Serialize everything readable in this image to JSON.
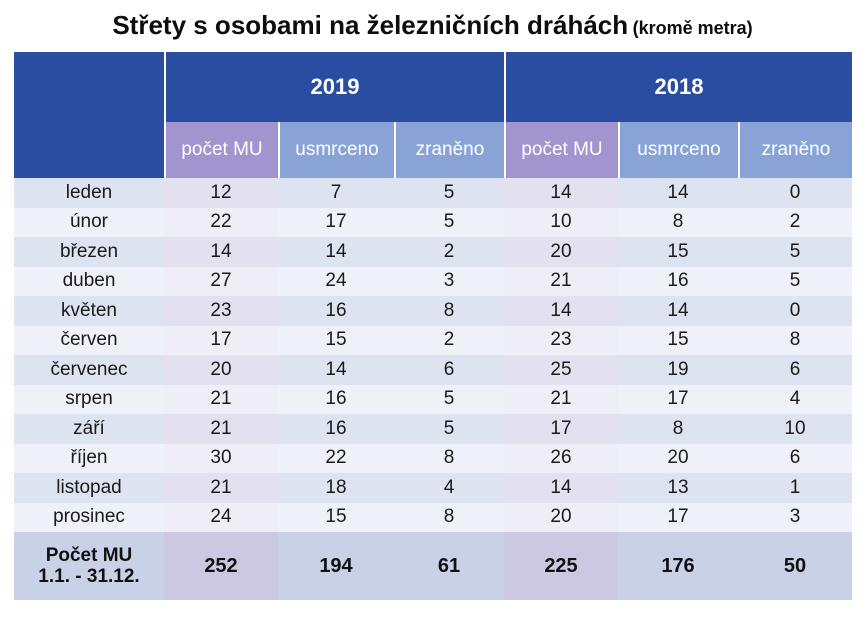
{
  "title": "Střety s osobami na železničních dráhách",
  "subtitle": "(kromě metra)",
  "chart_data": {
    "type": "table",
    "years": [
      "2019",
      "2018"
    ],
    "columns": [
      "počet MU",
      "usmrceno",
      "zraněno"
    ],
    "rows": [
      {
        "month": "leden",
        "values": [
          12,
          7,
          5,
          14,
          14,
          0
        ]
      },
      {
        "month": "únor",
        "values": [
          22,
          17,
          5,
          10,
          8,
          2
        ]
      },
      {
        "month": "březen",
        "values": [
          14,
          14,
          2,
          20,
          15,
          5
        ]
      },
      {
        "month": "duben",
        "values": [
          27,
          24,
          3,
          21,
          16,
          5
        ]
      },
      {
        "month": "květen",
        "values": [
          23,
          16,
          8,
          14,
          14,
          0
        ]
      },
      {
        "month": "červen",
        "values": [
          17,
          15,
          2,
          23,
          15,
          8
        ]
      },
      {
        "month": "červenec",
        "values": [
          20,
          14,
          6,
          25,
          19,
          6
        ]
      },
      {
        "month": "srpen",
        "values": [
          21,
          16,
          5,
          21,
          17,
          4
        ]
      },
      {
        "month": "září",
        "values": [
          21,
          16,
          5,
          17,
          8,
          10
        ]
      },
      {
        "month": "říjen",
        "values": [
          30,
          22,
          8,
          26,
          20,
          6
        ]
      },
      {
        "month": "listopad",
        "values": [
          21,
          18,
          4,
          14,
          13,
          1
        ]
      },
      {
        "month": "prosinec",
        "values": [
          24,
          15,
          8,
          20,
          17,
          3
        ]
      }
    ],
    "total": {
      "label_line1": "Počet MU",
      "label_line2": "1.1. - 31.12.",
      "values": [
        252,
        194,
        61,
        225,
        176,
        50
      ]
    }
  }
}
